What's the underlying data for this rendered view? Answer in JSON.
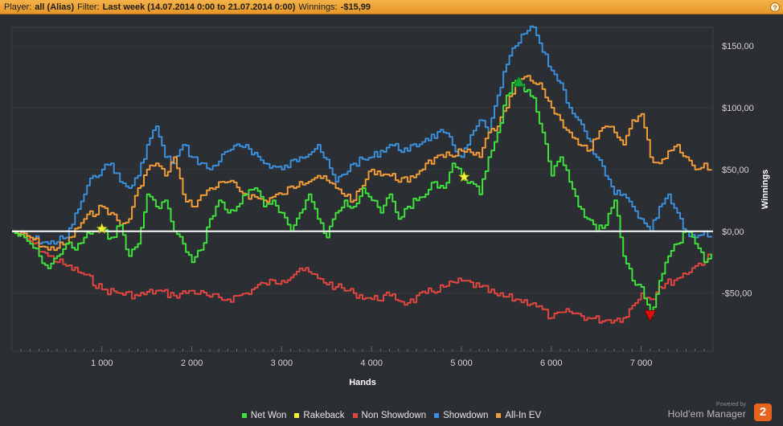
{
  "header": {
    "player_label": "Player:",
    "player_value": "all (Alias)",
    "filter_label": "Filter:",
    "filter_value": "Last week (14.07.2014 0:00 to 21.07.2014 0:00)",
    "winnings_label": "Winnings:",
    "winnings_value": "-$15,99",
    "help_icon": "?"
  },
  "branding": {
    "powered_by": "Powered by",
    "name": "Hold'em Manager",
    "badge": "2"
  },
  "colors": {
    "background": "#2b2e32",
    "header": "#eda33a",
    "zero_line": "#ffffff",
    "net_won": "#3fe03c",
    "rakeback": "#f0ef3a",
    "non_showdown": "#e0463f",
    "showdown": "#3a8fdb",
    "all_in_ev": "#f19b38"
  },
  "chart_data": {
    "type": "line",
    "xlabel": "Hands",
    "ylabel": "Winnings",
    "xlim": [
      0,
      7800
    ],
    "ylim": [
      -97,
      165
    ],
    "x_ticks": [
      1000,
      2000,
      3000,
      4000,
      5000,
      6000,
      7000
    ],
    "x_tick_labels": [
      "1 000",
      "2 000",
      "3 000",
      "4 000",
      "5 000",
      "6 000",
      "7 000"
    ],
    "y_ticks": [
      -50,
      0,
      50,
      100,
      150
    ],
    "y_tick_labels": [
      "-$50,00",
      "$0,00",
      "$50,00",
      "$100,00",
      "$150,00"
    ],
    "legend_position": "bottom-center",
    "series": [
      {
        "name": "Net Won",
        "color": "#3fe03c",
        "x": [
          0,
          200,
          300,
          400,
          500,
          600,
          700,
          800,
          900,
          1000,
          1100,
          1200,
          1300,
          1400,
          1500,
          1600,
          1700,
          1800,
          1900,
          2000,
          2100,
          2200,
          2300,
          2400,
          2500,
          2600,
          2700,
          2800,
          2900,
          3000,
          3100,
          3200,
          3300,
          3400,
          3500,
          3600,
          3700,
          3800,
          3900,
          4000,
          4100,
          4200,
          4300,
          4400,
          4500,
          4600,
          4700,
          4800,
          4900,
          5000,
          5100,
          5200,
          5300,
          5400,
          5500,
          5600,
          5700,
          5800,
          5900,
          6000,
          6100,
          6200,
          6300,
          6400,
          6500,
          6600,
          6700,
          6800,
          6900,
          7000,
          7100,
          7200,
          7300,
          7400,
          7500,
          7600,
          7700,
          7780
        ],
        "values": [
          0,
          -10,
          -20,
          -30,
          -20,
          -10,
          -15,
          -5,
          0,
          0,
          -5,
          5,
          -20,
          -10,
          30,
          20,
          25,
          0,
          -10,
          -25,
          -15,
          10,
          25,
          15,
          20,
          30,
          35,
          20,
          25,
          15,
          0,
          15,
          30,
          10,
          -5,
          15,
          25,
          20,
          35,
          25,
          15,
          30,
          10,
          20,
          25,
          30,
          40,
          35,
          55,
          45,
          40,
          30,
          60,
          80,
          110,
          122,
          113,
          108,
          80,
          45,
          60,
          40,
          20,
          10,
          0,
          5,
          25,
          -20,
          -40,
          -45,
          -68,
          -40,
          -20,
          -10,
          0,
          -10,
          -25,
          -18
        ]
      },
      {
        "name": "Rakeback",
        "color": "#f0ef3a",
        "x": [
          1000,
          5030
        ],
        "values": [
          2,
          44
        ]
      },
      {
        "name": "Non Showdown",
        "color": "#e0463f",
        "x": [
          0,
          200,
          400,
          600,
          800,
          1000,
          1200,
          1400,
          1600,
          1800,
          2000,
          2200,
          2400,
          2600,
          2800,
          3000,
          3200,
          3400,
          3600,
          3800,
          4000,
          4200,
          4400,
          4600,
          4800,
          5000,
          5200,
          5400,
          5600,
          5800,
          6000,
          6200,
          6400,
          6600,
          6800,
          7000,
          7100,
          7200,
          7400,
          7600,
          7780
        ],
        "values": [
          0,
          -8,
          -20,
          -28,
          -35,
          -47,
          -50,
          -52,
          -48,
          -52,
          -48,
          -53,
          -55,
          -50,
          -42,
          -40,
          -30,
          -38,
          -45,
          -50,
          -55,
          -52,
          -58,
          -50,
          -45,
          -40,
          -45,
          -52,
          -55,
          -58,
          -70,
          -65,
          -70,
          -72,
          -70,
          -50,
          -55,
          -45,
          -38,
          -28,
          -20
        ]
      },
      {
        "name": "Showdown",
        "color": "#3a8fdb",
        "x": [
          0,
          200,
          400,
          600,
          800,
          900,
          1000,
          1100,
          1200,
          1300,
          1400,
          1500,
          1600,
          1700,
          1800,
          1900,
          2000,
          2200,
          2400,
          2600,
          2800,
          3000,
          3200,
          3400,
          3600,
          3800,
          4000,
          4200,
          4400,
          4600,
          4800,
          5000,
          5200,
          5300,
          5400,
          5500,
          5600,
          5700,
          5800,
          5900,
          6000,
          6100,
          6200,
          6300,
          6400,
          6500,
          6600,
          6700,
          6800,
          6900,
          7000,
          7100,
          7200,
          7300,
          7400,
          7500,
          7600,
          7700,
          7780
        ],
        "values": [
          0,
          -5,
          -10,
          -5,
          30,
          45,
          50,
          55,
          40,
          35,
          45,
          70,
          85,
          60,
          55,
          70,
          60,
          50,
          65,
          70,
          55,
          50,
          60,
          70,
          40,
          55,
          60,
          70,
          65,
          75,
          80,
          60,
          90,
          80,
          110,
          135,
          150,
          160,
          165,
          145,
          130,
          120,
          100,
          90,
          75,
          60,
          45,
          30,
          30,
          20,
          10,
          0,
          20,
          30,
          15,
          0,
          -5,
          0,
          -5
        ]
      },
      {
        "name": "All-In EV",
        "color": "#f19b38",
        "x": [
          0,
          200,
          400,
          600,
          800,
          1000,
          1100,
          1200,
          1300,
          1400,
          1500,
          1600,
          1700,
          1800,
          1900,
          2000,
          2200,
          2400,
          2600,
          2800,
          3000,
          3200,
          3400,
          3600,
          3800,
          4000,
          4200,
          4400,
          4600,
          4800,
          5000,
          5200,
          5300,
          5400,
          5500,
          5600,
          5700,
          5800,
          5900,
          6000,
          6100,
          6200,
          6300,
          6400,
          6500,
          6600,
          6700,
          6800,
          6900,
          7000,
          7100,
          7200,
          7300,
          7400,
          7500,
          7600,
          7700,
          7780
        ],
        "values": [
          0,
          -5,
          -15,
          -10,
          10,
          20,
          15,
          5,
          10,
          35,
          50,
          55,
          45,
          60,
          30,
          20,
          35,
          40,
          30,
          25,
          30,
          40,
          45,
          35,
          25,
          50,
          45,
          40,
          55,
          60,
          65,
          60,
          80,
          85,
          100,
          118,
          125,
          120,
          115,
          100,
          90,
          80,
          70,
          65,
          75,
          85,
          80,
          70,
          90,
          95,
          60,
          55,
          65,
          70,
          60,
          50,
          55,
          50
        ]
      }
    ],
    "markers": [
      {
        "type": "star",
        "color": "#f0ef3a",
        "x": 1000,
        "y": 2
      },
      {
        "type": "star",
        "color": "#f0ef3a",
        "x": 5030,
        "y": 44
      },
      {
        "type": "triangle-up",
        "color": "#1aa034",
        "x": 5640,
        "y": 121
      },
      {
        "type": "triangle-down",
        "color": "#e00f0f",
        "x": 7100,
        "y": -68
      }
    ]
  }
}
